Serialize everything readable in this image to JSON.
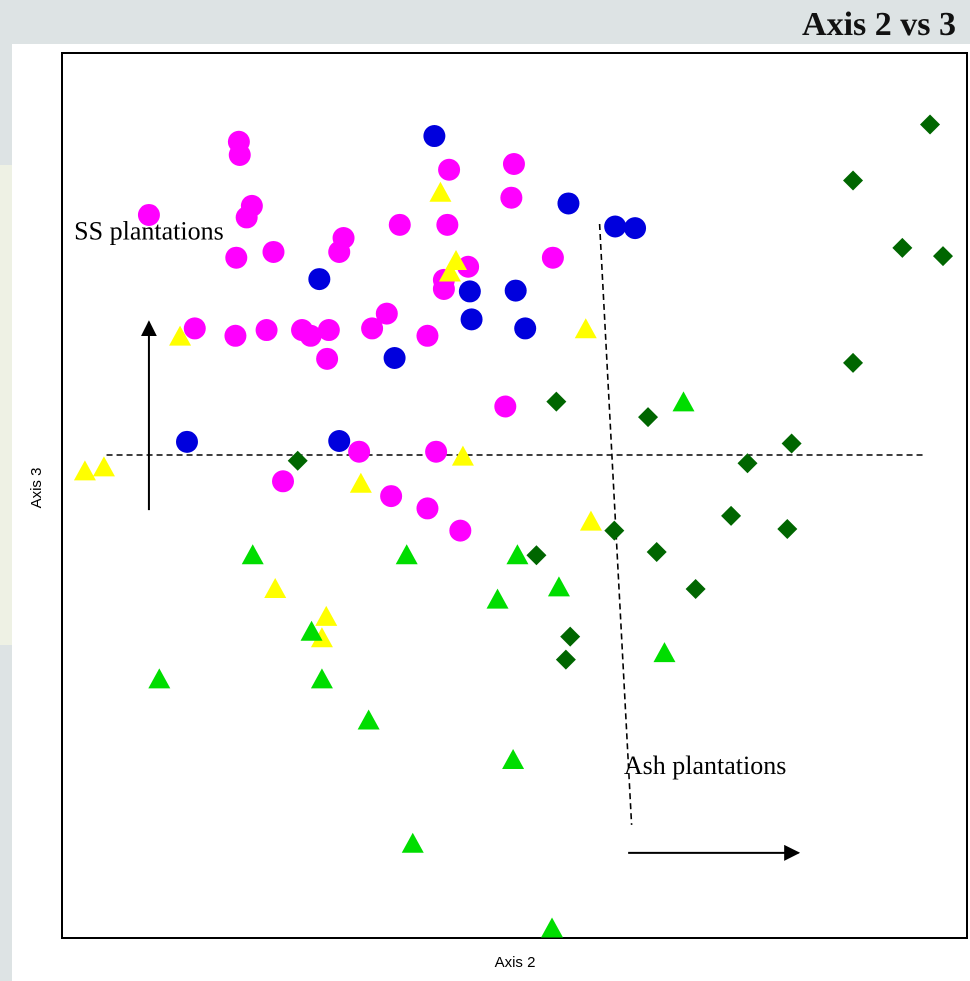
{
  "title": "Axis 2 vs 3",
  "colors": {
    "magenta": "#ff00ff",
    "blue": "#0000dd",
    "yellow": "#ffff00",
    "light_green": "#00dd00",
    "dark_green": "#006600"
  },
  "chart_data": {
    "type": "scatter",
    "xlabel": "Axis 2",
    "ylabel": "Axis 3",
    "xlim": [
      0,
      100
    ],
    "ylim": [
      0,
      100
    ],
    "grid": false,
    "legend": "none",
    "annotations": [
      {
        "text": "SS plantations",
        "arrow": "up"
      },
      {
        "text": "Ash plantations",
        "arrow": "right"
      }
    ],
    "reference_lines": [
      {
        "style": "dashed",
        "from": [
          3.3,
          57.3
        ],
        "to": [
          97.8,
          57.3
        ]
      },
      {
        "style": "dashed",
        "from": [
          60.3,
          85.4
        ],
        "to": [
          64.0,
          12.3
        ]
      },
      {
        "style": "solid-arrow",
        "from": [
          8.2,
          50.6
        ],
        "to": [
          8.2,
          73.5
        ]
      },
      {
        "style": "solid-arrow",
        "from": [
          63.6,
          8.9
        ],
        "to": [
          83.3,
          8.9
        ]
      }
    ],
    "series": [
      {
        "marker": "circle",
        "color": "magenta",
        "points": [
          [
            18.6,
            95.4
          ],
          [
            18.7,
            93.8
          ],
          [
            50.4,
            92.7
          ],
          [
            42.9,
            92.0
          ],
          [
            50.1,
            88.6
          ],
          [
            20.1,
            87.6
          ],
          [
            8.2,
            86.5
          ],
          [
            19.5,
            86.2
          ],
          [
            37.2,
            85.3
          ],
          [
            42.7,
            85.3
          ],
          [
            30.7,
            83.7
          ],
          [
            22.6,
            82.0
          ],
          [
            30.2,
            82.0
          ],
          [
            18.3,
            81.3
          ],
          [
            54.9,
            81.3
          ],
          [
            45.1,
            80.2
          ],
          [
            42.3,
            78.6
          ],
          [
            42.3,
            77.5
          ],
          [
            35.7,
            74.5
          ],
          [
            13.5,
            72.7
          ],
          [
            21.8,
            72.5
          ],
          [
            25.9,
            72.5
          ],
          [
            29.0,
            72.5
          ],
          [
            18.2,
            71.8
          ],
          [
            26.9,
            71.8
          ],
          [
            34.0,
            72.7
          ],
          [
            40.4,
            71.8
          ],
          [
            28.8,
            69.0
          ],
          [
            49.4,
            63.2
          ],
          [
            32.5,
            57.7
          ],
          [
            41.4,
            57.7
          ],
          [
            23.7,
            54.1
          ],
          [
            36.2,
            52.3
          ],
          [
            40.4,
            50.8
          ],
          [
            44.2,
            48.1
          ]
        ]
      },
      {
        "marker": "circle",
        "color": "blue",
        "points": [
          [
            41.2,
            96.1
          ],
          [
            56.7,
            87.9
          ],
          [
            62.1,
            85.1
          ],
          [
            64.4,
            84.9
          ],
          [
            27.9,
            78.7
          ],
          [
            45.3,
            77.2
          ],
          [
            50.6,
            77.3
          ],
          [
            45.5,
            73.8
          ],
          [
            51.7,
            72.7
          ],
          [
            36.6,
            69.1
          ],
          [
            12.6,
            58.9
          ],
          [
            30.2,
            59.0
          ]
        ]
      },
      {
        "marker": "triangle",
        "color": "yellow",
        "points": [
          [
            41.9,
            89.2
          ],
          [
            43.7,
            80.9
          ],
          [
            43.0,
            79.5
          ],
          [
            11.8,
            71.7
          ],
          [
            58.7,
            72.6
          ],
          [
            0.8,
            55.3
          ],
          [
            3.0,
            55.8
          ],
          [
            32.7,
            53.8
          ],
          [
            44.5,
            57.1
          ],
          [
            59.3,
            49.2
          ],
          [
            22.8,
            41.0
          ],
          [
            28.7,
            37.6
          ],
          [
            28.2,
            35.0
          ]
        ]
      },
      {
        "marker": "triangle",
        "color": "light_green",
        "points": [
          [
            70.0,
            63.7
          ],
          [
            20.2,
            45.1
          ],
          [
            38.0,
            45.1
          ],
          [
            50.8,
            45.1
          ],
          [
            48.5,
            39.7
          ],
          [
            55.6,
            41.2
          ],
          [
            27.0,
            35.8
          ],
          [
            67.8,
            33.2
          ],
          [
            9.4,
            30.0
          ],
          [
            28.2,
            30.0
          ],
          [
            33.6,
            25.0
          ],
          [
            50.3,
            20.2
          ],
          [
            38.7,
            10.0
          ],
          [
            54.8,
            -0.3
          ]
        ]
      },
      {
        "marker": "diamond",
        "color": "dark_green",
        "points": [
          [
            98.5,
            97.5
          ],
          [
            89.6,
            90.7
          ],
          [
            95.3,
            82.5
          ],
          [
            100.0,
            81.5
          ],
          [
            89.6,
            68.5
          ],
          [
            55.3,
            63.8
          ],
          [
            65.9,
            61.9
          ],
          [
            82.5,
            58.7
          ],
          [
            77.4,
            56.3
          ],
          [
            25.4,
            56.6
          ],
          [
            75.5,
            49.9
          ],
          [
            82.0,
            48.3
          ],
          [
            53.0,
            45.1
          ],
          [
            62.0,
            48.1
          ],
          [
            66.9,
            45.5
          ],
          [
            71.4,
            41.0
          ],
          [
            56.9,
            35.2
          ],
          [
            56.4,
            32.4
          ]
        ]
      }
    ]
  }
}
